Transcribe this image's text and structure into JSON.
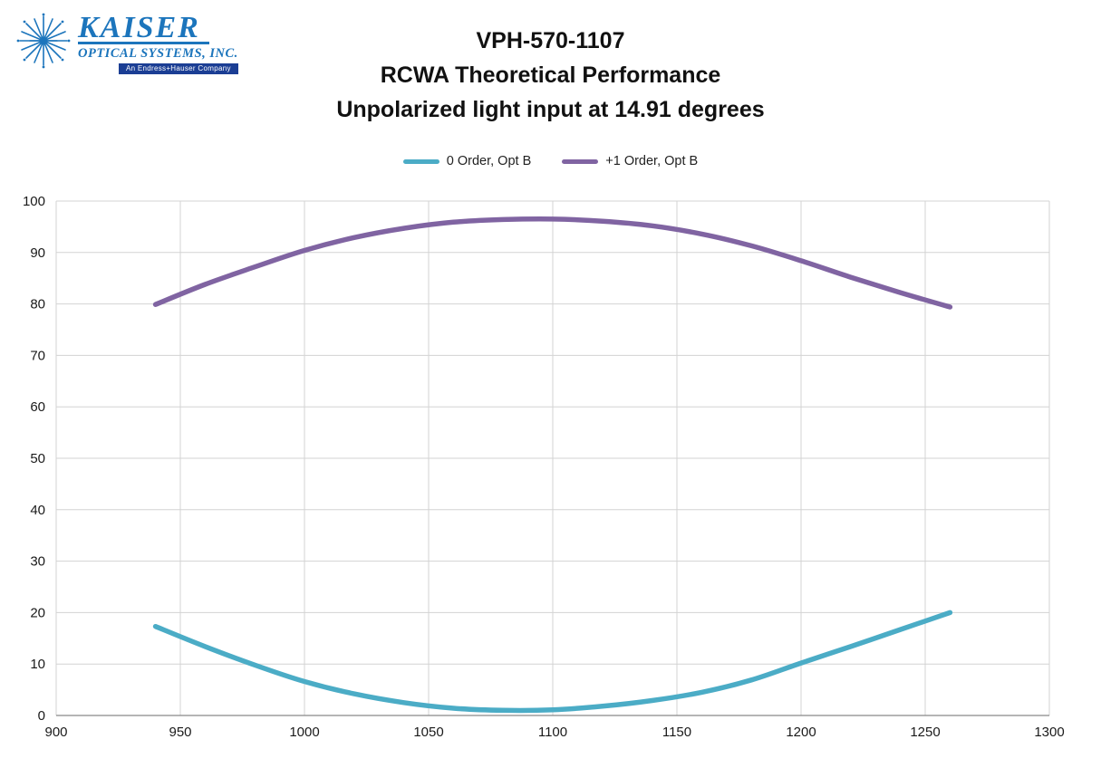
{
  "logo": {
    "name": "KAISER",
    "subtitle": "OPTICAL SYSTEMS, INC.",
    "tagline": "An Endress+Hauser Company",
    "brand_color": "#1c75bc",
    "tagline_bar_color": "#1b3e94"
  },
  "chart_data": {
    "type": "line",
    "title": "VPH-570-1107",
    "subtitle": "RCWA Theoretical Performance",
    "subtitle2": "Unpolarized light input at 14.91 degrees",
    "xlabel": "",
    "ylabel": "",
    "xlim": [
      900,
      1300
    ],
    "ylim": [
      0,
      100
    ],
    "x_ticks": [
      900,
      950,
      1000,
      1050,
      1100,
      1150,
      1200,
      1250,
      1300
    ],
    "y_ticks": [
      0,
      10,
      20,
      30,
      40,
      50,
      60,
      70,
      80,
      90,
      100
    ],
    "grid": true,
    "grid_color": "#d3d3d3",
    "axis_color": "#898989",
    "legend_position": "top",
    "x": [
      940,
      960,
      980,
      1000,
      1020,
      1040,
      1060,
      1080,
      1100,
      1120,
      1140,
      1160,
      1180,
      1200,
      1220,
      1240,
      1260
    ],
    "series": [
      {
        "name": "0 Order, Opt B",
        "color": "#4bacc6",
        "values": [
          17.3,
          13.4,
          9.8,
          6.6,
          4.2,
          2.5,
          1.4,
          1.0,
          1.1,
          1.8,
          2.9,
          4.5,
          6.9,
          10.2,
          13.4,
          16.7,
          20.0
        ]
      },
      {
        "name": "+1 Order, Opt B",
        "color": "#8064a2",
        "values": [
          79.9,
          83.8,
          87.2,
          90.4,
          92.9,
          94.7,
          95.9,
          96.4,
          96.5,
          96.1,
          95.2,
          93.6,
          91.3,
          88.4,
          85.2,
          82.2,
          79.4
        ]
      }
    ]
  }
}
